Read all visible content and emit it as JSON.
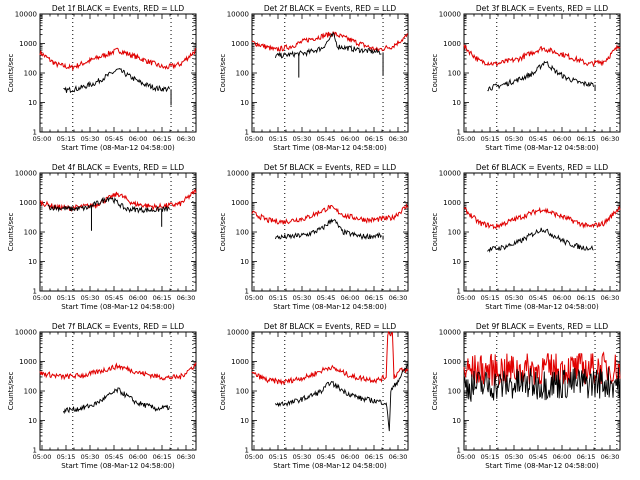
{
  "chart_data": {
    "type": "line",
    "panels": [
      {
        "title": "Det 1f BLACK = Events, RED = LLD",
        "xlabel": "Start Time (08-Mar-12 04:58:00)",
        "ylabel": "Counts/sec",
        "xticks": [
          "05:00",
          "05:15",
          "05:30",
          "05:45",
          "06:00",
          "06:15",
          "06:30"
        ],
        "yticks": [
          "1",
          "10",
          "100",
          "1000",
          "10000"
        ],
        "ylim": [
          1,
          10000
        ],
        "xlim": [
          0,
          100
        ],
        "markers": [
          21,
          84,
          98
        ],
        "series": [
          {
            "name": "LLD",
            "color": "#e00000",
            "points": [
              [
                0,
                500
              ],
              [
                10,
                200
              ],
              [
                20,
                150
              ],
              [
                35,
                300
              ],
              [
                50,
                600
              ],
              [
                65,
                300
              ],
              [
                80,
                150
              ],
              [
                90,
                200
              ],
              [
                100,
                600
              ]
            ]
          },
          {
            "name": "Events",
            "color": "#000000",
            "points": [
              [
                15,
                25
              ],
              [
                25,
                30
              ],
              [
                35,
                45
              ],
              [
                50,
                130
              ],
              [
                65,
                45
              ],
              [
                75,
                30
              ],
              [
                83,
                28
              ]
            ],
            "drops": [
              [
                84,
                8
              ]
            ]
          }
        ]
      },
      {
        "title": "Det 2f BLACK = Events, RED = LLD",
        "xlabel": "Start Time (08-Mar-12 04:58:00)",
        "ylabel": "Counts/sec",
        "xticks": [
          "05:00",
          "05:15",
          "05:30",
          "05:45",
          "06:00",
          "06:15",
          "06:30"
        ],
        "yticks": [
          "1",
          "10",
          "100",
          "1000",
          "10000"
        ],
        "ylim": [
          1,
          10000
        ],
        "xlim": [
          0,
          100
        ],
        "markers": [
          21,
          84,
          98
        ],
        "series": [
          {
            "name": "LLD",
            "color": "#e00000",
            "points": [
              [
                0,
                1100
              ],
              [
                15,
                600
              ],
              [
                25,
                800
              ],
              [
                35,
                1300
              ],
              [
                52,
                2200
              ],
              [
                65,
                1200
              ],
              [
                80,
                600
              ],
              [
                90,
                800
              ],
              [
                100,
                1900
              ]
            ]
          },
          {
            "name": "Events",
            "color": "#000000",
            "points": [
              [
                15,
                380
              ],
              [
                25,
                420
              ],
              [
                35,
                480
              ],
              [
                45,
                700
              ],
              [
                52,
                2000
              ],
              [
                55,
                800
              ],
              [
                65,
                650
              ],
              [
                75,
                550
              ],
              [
                83,
                500
              ]
            ],
            "drops": [
              [
                30,
                70
              ],
              [
                84,
                80
              ]
            ]
          }
        ]
      },
      {
        "title": "Det 3f BLACK = Events, RED = LLD",
        "xlabel": "Start Time (08-Mar-12 04:58:00)",
        "ylabel": "Counts/sec",
        "xticks": [
          "05:00",
          "05:15",
          "05:30",
          "05:45",
          "06:00",
          "06:15",
          "06:30"
        ],
        "yticks": [
          "1",
          "10",
          "100",
          "1000",
          "10000"
        ],
        "ylim": [
          1,
          10000
        ],
        "xlim": [
          0,
          100
        ],
        "markers": [
          21,
          84,
          98
        ],
        "series": [
          {
            "name": "LLD",
            "color": "#e00000",
            "points": [
              [
                0,
                800
              ],
              [
                10,
                250
              ],
              [
                20,
                200
              ],
              [
                35,
                300
              ],
              [
                50,
                700
              ],
              [
                65,
                400
              ],
              [
                80,
                200
              ],
              [
                90,
                250
              ],
              [
                100,
                900
              ]
            ]
          },
          {
            "name": "Events",
            "color": "#000000",
            "points": [
              [
                15,
                30
              ],
              [
                25,
                40
              ],
              [
                35,
                60
              ],
              [
                45,
                100
              ],
              [
                52,
                250
              ],
              [
                58,
                120
              ],
              [
                65,
                70
              ],
              [
                75,
                45
              ],
              [
                83,
                40
              ]
            ],
            "drops": [
              [
                84,
                25
              ]
            ]
          }
        ]
      },
      {
        "title": "Det 4f BLACK = Events, RED = LLD",
        "xlabel": "Start Time (08-Mar-12 04:58:00)",
        "ylabel": "Counts/sec",
        "xticks": [
          "05:00",
          "05:15",
          "05:30",
          "05:45",
          "06:00",
          "06:15",
          "06:30"
        ],
        "yticks": [
          "1",
          "10",
          "100",
          "1000",
          "10000"
        ],
        "ylim": [
          1,
          10000
        ],
        "xlim": [
          0,
          100
        ],
        "markers": [
          21,
          84,
          98
        ],
        "series": [
          {
            "name": "LLD",
            "color": "#e00000",
            "points": [
              [
                0,
                1000
              ],
              [
                10,
                700
              ],
              [
                20,
                650
              ],
              [
                35,
                800
              ],
              [
                50,
                2000
              ],
              [
                60,
                900
              ],
              [
                75,
                700
              ],
              [
                90,
                900
              ],
              [
                100,
                2500
              ]
            ]
          },
          {
            "name": "Events",
            "color": "#000000",
            "points": [
              [
                5,
                700
              ],
              [
                20,
                600
              ],
              [
                30,
                650
              ],
              [
                45,
                1500
              ],
              [
                55,
                600
              ],
              [
                70,
                550
              ],
              [
                83,
                600
              ]
            ],
            "drops": [
              [
                33,
                110
              ],
              [
                78,
                150
              ]
            ]
          }
        ]
      },
      {
        "title": "Det 5f BLACK = Events, RED = LLD",
        "xlabel": "Start Time (08-Mar-12 04:58:00)",
        "ylabel": "Counts/sec",
        "xticks": [
          "05:00",
          "05:15",
          "05:30",
          "05:45",
          "06:00",
          "06:15",
          "06:30"
        ],
        "yticks": [
          "1",
          "10",
          "100",
          "1000",
          "10000"
        ],
        "ylim": [
          1,
          10000
        ],
        "xlim": [
          0,
          100
        ],
        "markers": [
          21,
          84,
          98
        ],
        "series": [
          {
            "name": "LLD",
            "color": "#e00000",
            "points": [
              [
                0,
                450
              ],
              [
                10,
                250
              ],
              [
                20,
                220
              ],
              [
                35,
                300
              ],
              [
                50,
                700
              ],
              [
                60,
                350
              ],
              [
                75,
                250
              ],
              [
                90,
                300
              ],
              [
                100,
                800
              ]
            ]
          },
          {
            "name": "Events",
            "color": "#000000",
            "points": [
              [
                15,
                65
              ],
              [
                25,
                70
              ],
              [
                35,
                80
              ],
              [
                45,
                130
              ],
              [
                52,
                280
              ],
              [
                58,
                100
              ],
              [
                70,
                70
              ],
              [
                83,
                75
              ]
            ],
            "drops": [
              [
                84,
                55
              ]
            ]
          }
        ]
      },
      {
        "title": "Det 6f BLACK = Events, RED = LLD",
        "xlabel": "Start Time (08-Mar-12 04:58:00)",
        "ylabel": "Counts/sec",
        "xticks": [
          "05:00",
          "05:15",
          "05:30",
          "05:45",
          "06:00",
          "06:15",
          "06:30"
        ],
        "yticks": [
          "1",
          "10",
          "100",
          "1000",
          "10000"
        ],
        "ylim": [
          1,
          10000
        ],
        "xlim": [
          0,
          100
        ],
        "markers": [
          21,
          84,
          98
        ],
        "series": [
          {
            "name": "LLD",
            "color": "#e00000",
            "points": [
              [
                0,
                600
              ],
              [
                10,
                200
              ],
              [
                20,
                150
              ],
              [
                35,
                300
              ],
              [
                50,
                600
              ],
              [
                65,
                300
              ],
              [
                80,
                150
              ],
              [
                90,
                200
              ],
              [
                100,
                700
              ]
            ]
          },
          {
            "name": "Events",
            "color": "#000000",
            "points": [
              [
                15,
                25
              ],
              [
                25,
                30
              ],
              [
                35,
                45
              ],
              [
                50,
                130
              ],
              [
                65,
                45
              ],
              [
                75,
                30
              ],
              [
                83,
                28
              ]
            ]
          }
        ]
      },
      {
        "title": "Det 7f BLACK = Events, RED = LLD",
        "xlabel": "Start Time (08-Mar-12 04:58:00)",
        "ylabel": "Counts/sec",
        "xticks": [
          "05:00",
          "05:15",
          "05:30",
          "05:45",
          "06:00",
          "06:15",
          "06:30"
        ],
        "yticks": [
          "1",
          "10",
          "100",
          "1000",
          "10000"
        ],
        "ylim": [
          1,
          10000
        ],
        "xlim": [
          0,
          100
        ],
        "markers": [
          21,
          84,
          98
        ],
        "series": [
          {
            "name": "LLD",
            "color": "#e00000",
            "points": [
              [
                0,
                400
              ],
              [
                15,
                300
              ],
              [
                30,
                350
              ],
              [
                50,
                700
              ],
              [
                65,
                400
              ],
              [
                80,
                280
              ],
              [
                90,
                300
              ],
              [
                100,
                800
              ]
            ]
          },
          {
            "name": "Events",
            "color": "#000000",
            "points": [
              [
                15,
                22
              ],
              [
                25,
                25
              ],
              [
                35,
                35
              ],
              [
                50,
                110
              ],
              [
                62,
                40
              ],
              [
                75,
                25
              ],
              [
                83,
                28
              ]
            ]
          }
        ]
      },
      {
        "title": "Det 8f BLACK = Events, RED = LLD",
        "xlabel": "Start Time (08-Mar-12 04:58:00)",
        "ylabel": "Counts/sec",
        "xticks": [
          "05:00",
          "05:15",
          "05:30",
          "05:45",
          "06:00",
          "06:15",
          "06:30"
        ],
        "yticks": [
          "1",
          "10",
          "100",
          "1000",
          "10000"
        ],
        "ylim": [
          1,
          10000
        ],
        "xlim": [
          0,
          100
        ],
        "markers": [
          21,
          84,
          98
        ],
        "series": [
          {
            "name": "LLD",
            "color": "#e00000",
            "points": [
              [
                0,
                400
              ],
              [
                10,
                230
              ],
              [
                20,
                200
              ],
              [
                35,
                300
              ],
              [
                50,
                650
              ],
              [
                65,
                300
              ],
              [
                80,
                230
              ],
              [
                86,
                300
              ],
              [
                87,
                9000
              ],
              [
                90,
                9000
              ],
              [
                91,
                300
              ],
              [
                95,
                500
              ],
              [
                100,
                500
              ]
            ]
          },
          {
            "name": "Events",
            "color": "#000000",
            "points": [
              [
                15,
                35
              ],
              [
                25,
                40
              ],
              [
                35,
                60
              ],
              [
                45,
                100
              ],
              [
                50,
                200
              ],
              [
                60,
                90
              ],
              [
                70,
                55
              ],
              [
                80,
                45
              ],
              [
                86,
                40
              ],
              [
                88,
                5
              ],
              [
                89,
                100
              ],
              [
                93,
                200
              ],
              [
                100,
                800
              ]
            ]
          }
        ]
      },
      {
        "title": "Det 9f BLACK = Events, RED = LLD",
        "xlabel": "Start Time (08-Mar-12 04:58:00)",
        "ylabel": "Counts/sec",
        "xticks": [
          "05:00",
          "05:15",
          "05:30",
          "05:45",
          "06:00",
          "06:15",
          "06:30"
        ],
        "yticks": [
          "1",
          "10",
          "100",
          "1000",
          "10000"
        ],
        "ylim": [
          1,
          10000
        ],
        "xlim": [
          0,
          100
        ],
        "markers": [
          21,
          84,
          98
        ],
        "series": [
          {
            "name": "LLD",
            "color": "#e00000",
            "points": [
              [
                0,
                500
              ],
              [
                100,
                600
              ]
            ],
            "noise": true
          },
          {
            "name": "Events",
            "color": "#000000",
            "points": [
              [
                0,
                150
              ],
              [
                100,
                200
              ]
            ],
            "noise": true
          }
        ]
      }
    ]
  }
}
